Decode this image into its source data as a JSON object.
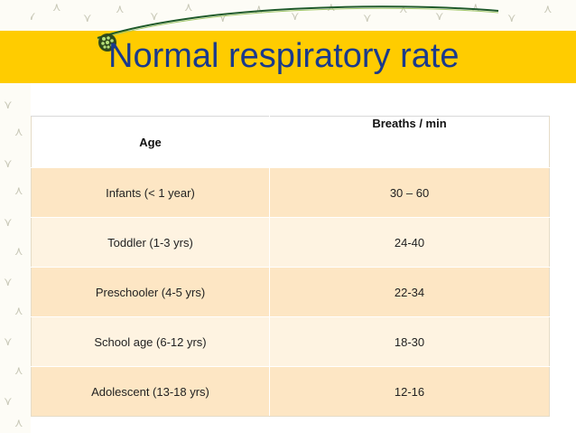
{
  "slide": {
    "title": "Normal respiratory rate",
    "accent_color": "#ffcc00",
    "title_color": "#1a3a8c"
  },
  "table": {
    "headers": {
      "age": "Age",
      "rate": "Breaths / min"
    },
    "rows": [
      {
        "age": "Infants (< 1 year)",
        "rate": "30 – 60"
      },
      {
        "age": "Toddler (1-3 yrs)",
        "rate": "24-40"
      },
      {
        "age": "Preschooler (4-5 yrs)",
        "rate": "22-34"
      },
      {
        "age": "School age (6-12 yrs)",
        "rate": "18-30"
      },
      {
        "age": "Adolescent (13-18 yrs)",
        "rate": "12-16"
      }
    ]
  }
}
